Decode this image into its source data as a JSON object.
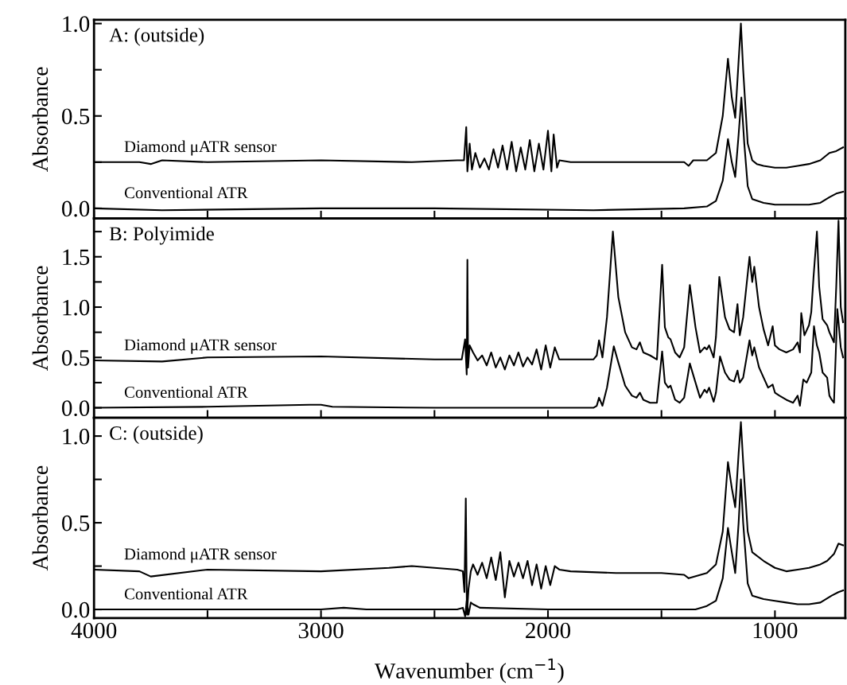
{
  "chart_data": [
    {
      "type": "line",
      "title": "A: (outside)",
      "ylabel": "Absorbance",
      "xlim": [
        4000,
        690
      ],
      "ylim": [
        -0.055,
        1.02
      ],
      "xticks": [
        {
          "value": 4000,
          "label": null
        },
        {
          "value": 3500,
          "label": null
        },
        {
          "value": 3000,
          "label": null
        },
        {
          "value": 2500,
          "label": null
        },
        {
          "value": 2000,
          "label": null
        },
        {
          "value": 1500,
          "label": null
        },
        {
          "value": 1000,
          "label": null
        }
      ],
      "yticks": [
        {
          "value": 0,
          "label": "0.0"
        },
        {
          "value": 0.25,
          "label": null
        },
        {
          "value": 0.5,
          "label": "0.5"
        },
        {
          "value": 0.75,
          "label": null
        },
        {
          "value": 1,
          "label": "1.0"
        }
      ],
      "tick_labels": "y",
      "grid": false,
      "legend": false,
      "marker": "none",
      "line_style": "solid",
      "series": [
        {
          "name": "Diamond μATR sensor",
          "color": "#000000",
          "x": [
            4000,
            3800,
            3750,
            3700,
            3500,
            3000,
            2600,
            2400,
            2370,
            2360,
            2355,
            2345,
            2335,
            2320,
            2300,
            2280,
            2260,
            2240,
            2220,
            2200,
            2180,
            2160,
            2140,
            2120,
            2100,
            2080,
            2060,
            2040,
            2020,
            2000,
            1985,
            1975,
            1960,
            1950,
            1900,
            1700,
            1500,
            1400,
            1380,
            1360,
            1300,
            1260,
            1230,
            1207,
            1190,
            1175,
            1160,
            1150,
            1140,
            1120,
            1100,
            1080,
            1050,
            1000,
            950,
            900,
            850,
            800,
            760,
            730,
            700
          ],
          "values": [
            0.25,
            0.25,
            0.24,
            0.26,
            0.25,
            0.26,
            0.25,
            0.26,
            0.26,
            0.44,
            0.2,
            0.35,
            0.21,
            0.3,
            0.22,
            0.27,
            0.21,
            0.32,
            0.22,
            0.34,
            0.21,
            0.36,
            0.2,
            0.33,
            0.21,
            0.37,
            0.2,
            0.35,
            0.21,
            0.42,
            0.2,
            0.4,
            0.22,
            0.26,
            0.25,
            0.25,
            0.25,
            0.25,
            0.23,
            0.26,
            0.26,
            0.3,
            0.5,
            0.81,
            0.6,
            0.49,
            0.8,
            1.0,
            0.75,
            0.35,
            0.26,
            0.24,
            0.23,
            0.22,
            0.22,
            0.23,
            0.24,
            0.26,
            0.3,
            0.31,
            0.33
          ]
        },
        {
          "name": "Conventional ATR",
          "color": "#000000",
          "x": [
            4000,
            3700,
            3000,
            2500,
            1800,
            1400,
            1300,
            1260,
            1230,
            1207,
            1190,
            1175,
            1160,
            1148,
            1135,
            1120,
            1100,
            1050,
            1000,
            950,
            900,
            850,
            800,
            760,
            730,
            700
          ],
          "values": [
            0.0,
            -0.01,
            0.0,
            0.0,
            -0.01,
            0.0,
            0.01,
            0.04,
            0.15,
            0.375,
            0.25,
            0.17,
            0.4,
            0.6,
            0.35,
            0.12,
            0.05,
            0.03,
            0.02,
            0.02,
            0.02,
            0.02,
            0.03,
            0.06,
            0.08,
            0.09
          ]
        }
      ]
    },
    {
      "type": "line",
      "title": "B: Polyimide",
      "ylabel": "Absorbance",
      "xlim": [
        4000,
        690
      ],
      "ylim": [
        -0.1,
        1.88
      ],
      "xticks": [
        {
          "value": 4000,
          "label": null
        },
        {
          "value": 3500,
          "label": null
        },
        {
          "value": 3000,
          "label": null
        },
        {
          "value": 2500,
          "label": null
        },
        {
          "value": 2000,
          "label": null
        },
        {
          "value": 1500,
          "label": null
        },
        {
          "value": 1000,
          "label": null
        }
      ],
      "yticks": [
        {
          "value": 0,
          "label": "0.0"
        },
        {
          "value": 0.25,
          "label": null
        },
        {
          "value": 0.5,
          "label": "0.5"
        },
        {
          "value": 0.75,
          "label": null
        },
        {
          "value": 1,
          "label": "1.0"
        },
        {
          "value": 1.25,
          "label": null
        },
        {
          "value": 1.5,
          "label": "1.5"
        },
        {
          "value": 1.75,
          "label": null
        }
      ],
      "tick_labels": "y",
      "grid": false,
      "legend": false,
      "marker": "none",
      "line_style": "solid",
      "series": [
        {
          "name": "Diamond μATR sensor",
          "color": "#000000",
          "x": [
            4000,
            3700,
            3500,
            3000,
            2500,
            2380,
            2365,
            2358,
            2355,
            2352,
            2345,
            2330,
            2310,
            2290,
            2270,
            2250,
            2230,
            2210,
            2190,
            2170,
            2150,
            2130,
            2110,
            2090,
            2070,
            2050,
            2030,
            2010,
            1990,
            1970,
            1950,
            1900,
            1800,
            1785,
            1775,
            1760,
            1740,
            1714,
            1690,
            1660,
            1630,
            1610,
            1595,
            1580,
            1550,
            1520,
            1497,
            1485,
            1470,
            1460,
            1440,
            1420,
            1400,
            1375,
            1350,
            1330,
            1310,
            1300,
            1290,
            1270,
            1260,
            1245,
            1220,
            1200,
            1180,
            1165,
            1155,
            1140,
            1112,
            1100,
            1091,
            1070,
            1050,
            1030,
            1010,
            1000,
            980,
            950,
            920,
            900,
            890,
            884,
            870,
            850,
            840,
            830,
            815,
            805,
            790,
            770,
            760,
            750,
            740,
            730,
            720,
            710,
            700
          ],
          "values": [
            0.47,
            0.46,
            0.5,
            0.51,
            0.48,
            0.48,
            0.68,
            0.33,
            1.47,
            0.4,
            0.62,
            0.55,
            0.47,
            0.52,
            0.42,
            0.55,
            0.4,
            0.5,
            0.38,
            0.52,
            0.42,
            0.55,
            0.41,
            0.5,
            0.43,
            0.58,
            0.38,
            0.62,
            0.4,
            0.6,
            0.48,
            0.48,
            0.48,
            0.52,
            0.67,
            0.5,
            0.9,
            1.75,
            1.1,
            0.75,
            0.6,
            0.58,
            0.65,
            0.55,
            0.52,
            0.48,
            1.42,
            0.8,
            0.7,
            0.68,
            0.55,
            0.5,
            0.6,
            1.22,
            0.8,
            0.55,
            0.6,
            0.58,
            0.62,
            0.5,
            0.7,
            1.3,
            0.9,
            0.78,
            0.75,
            1.03,
            0.72,
            0.9,
            1.5,
            1.25,
            1.4,
            1.0,
            0.78,
            0.62,
            0.81,
            0.62,
            0.58,
            0.55,
            0.58,
            0.65,
            0.55,
            0.94,
            0.72,
            0.82,
            0.95,
            1.3,
            1.75,
            1.2,
            0.88,
            0.82,
            0.75,
            0.7,
            0.65,
            1.2,
            1.86,
            1.0,
            0.85
          ]
        },
        {
          "name": "Conventional ATR",
          "color": "#000000",
          "x": [
            4000,
            3500,
            3050,
            3000,
            2950,
            2500,
            1800,
            1785,
            1775,
            1760,
            1740,
            1710,
            1690,
            1660,
            1630,
            1610,
            1595,
            1580,
            1550,
            1520,
            1497,
            1485,
            1470,
            1460,
            1440,
            1420,
            1400,
            1375,
            1350,
            1330,
            1310,
            1300,
            1290,
            1270,
            1260,
            1242,
            1220,
            1200,
            1180,
            1165,
            1155,
            1140,
            1112,
            1100,
            1091,
            1070,
            1050,
            1030,
            1010,
            1000,
            980,
            950,
            920,
            900,
            890,
            875,
            860,
            840,
            828,
            815,
            805,
            790,
            770,
            760,
            750,
            740,
            725,
            710,
            700
          ],
          "values": [
            0.0,
            0.01,
            0.03,
            0.03,
            0.01,
            0.0,
            0.0,
            0.02,
            0.1,
            0.02,
            0.2,
            0.61,
            0.45,
            0.22,
            0.12,
            0.1,
            0.15,
            0.08,
            0.05,
            0.05,
            0.56,
            0.25,
            0.2,
            0.22,
            0.08,
            0.05,
            0.1,
            0.44,
            0.25,
            0.1,
            0.18,
            0.15,
            0.2,
            0.06,
            0.15,
            0.51,
            0.35,
            0.28,
            0.26,
            0.37,
            0.25,
            0.3,
            0.67,
            0.52,
            0.6,
            0.4,
            0.3,
            0.2,
            0.23,
            0.15,
            0.12,
            0.08,
            0.05,
            0.12,
            0.02,
            0.28,
            0.25,
            0.35,
            0.81,
            0.62,
            0.55,
            0.35,
            0.3,
            0.12,
            0.08,
            0.05,
            0.98,
            0.6,
            0.5
          ]
        }
      ]
    },
    {
      "type": "line",
      "title": "C: (outside)",
      "ylabel": "Absorbance",
      "xlabel": "Wavenumber (cm$^{−1}$)",
      "xlim": [
        4000,
        690
      ],
      "ylim": [
        -0.05,
        1.105
      ],
      "xticks": [
        4000,
        {
          "value": 3500,
          "label": null
        },
        3000,
        {
          "value": 2500,
          "label": null
        },
        2000,
        {
          "value": 1500,
          "label": null
        },
        1000
      ],
      "yticks": [
        {
          "value": 0,
          "label": "0.0"
        },
        {
          "value": 0.25,
          "label": null
        },
        {
          "value": 0.5,
          "label": "0.5"
        },
        {
          "value": 0.75,
          "label": null
        },
        {
          "value": 1,
          "label": "1.0"
        }
      ],
      "grid": false,
      "legend": false,
      "marker": "none",
      "line_style": "solid",
      "series": [
        {
          "name": "Diamond μATR sensor",
          "color": "#000000",
          "x": [
            4000,
            3800,
            3750,
            3500,
            3000,
            2700,
            2600,
            2400,
            2375,
            2368,
            2362,
            2357,
            2350,
            2340,
            2330,
            2310,
            2290,
            2270,
            2250,
            2230,
            2210,
            2190,
            2170,
            2150,
            2130,
            2110,
            2090,
            2070,
            2050,
            2030,
            2010,
            1990,
            1970,
            1950,
            1900,
            1700,
            1500,
            1400,
            1380,
            1300,
            1260,
            1230,
            1207,
            1190,
            1175,
            1160,
            1150,
            1140,
            1120,
            1100,
            1050,
            1000,
            950,
            900,
            850,
            800,
            770,
            740,
            720,
            700
          ],
          "values": [
            0.23,
            0.22,
            0.19,
            0.23,
            0.22,
            0.24,
            0.25,
            0.23,
            0.22,
            0.1,
            0.64,
            -0.03,
            0.12,
            0.22,
            0.26,
            0.2,
            0.27,
            0.18,
            0.3,
            0.17,
            0.33,
            0.07,
            0.28,
            0.19,
            0.27,
            0.18,
            0.28,
            0.14,
            0.26,
            0.12,
            0.25,
            0.14,
            0.25,
            0.23,
            0.22,
            0.21,
            0.21,
            0.2,
            0.18,
            0.21,
            0.26,
            0.45,
            0.85,
            0.7,
            0.59,
            0.9,
            1.08,
            0.85,
            0.45,
            0.33,
            0.28,
            0.24,
            0.22,
            0.23,
            0.24,
            0.26,
            0.28,
            0.32,
            0.38,
            0.37
          ]
        },
        {
          "name": "Conventional ATR",
          "color": "#000000",
          "x": [
            4000,
            3000,
            2900,
            2800,
            2400,
            2375,
            2365,
            2358,
            2350,
            2340,
            2330,
            2300,
            2000,
            1500,
            1350,
            1300,
            1260,
            1230,
            1207,
            1190,
            1175,
            1160,
            1150,
            1140,
            1120,
            1100,
            1050,
            1000,
            950,
            900,
            850,
            800,
            750,
            720,
            700
          ],
          "values": [
            0.0,
            0.0,
            0.01,
            0.0,
            0.0,
            0.01,
            -0.04,
            0.05,
            -0.03,
            0.04,
            0.03,
            0.01,
            0.0,
            0.0,
            0.0,
            0.02,
            0.05,
            0.18,
            0.47,
            0.33,
            0.21,
            0.5,
            0.75,
            0.5,
            0.15,
            0.08,
            0.06,
            0.05,
            0.04,
            0.03,
            0.03,
            0.04,
            0.08,
            0.1,
            0.11
          ]
        }
      ]
    }
  ]
}
